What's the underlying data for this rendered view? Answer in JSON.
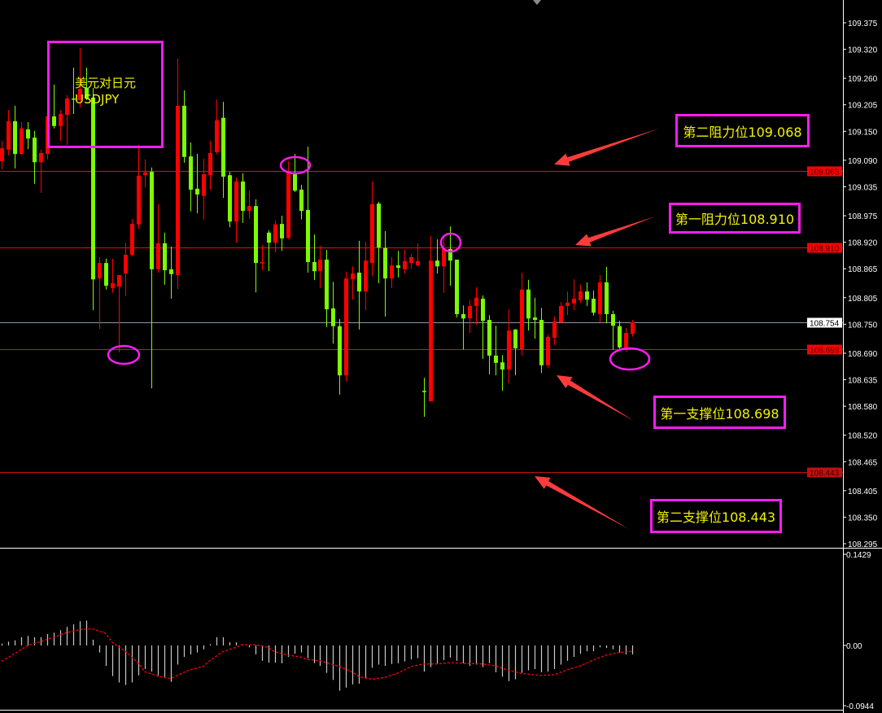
{
  "chart_data": [
    {
      "type": "candlestick",
      "symbol_cn": "美元对日元",
      "symbol": "USDJPY",
      "ylim": [
        108.295,
        109.375
      ],
      "y_ticks": [
        "109.375",
        "109.320",
        "109.260",
        "109.205",
        "109.150",
        "109.090",
        "109.035",
        "108.975",
        "108.920",
        "108.865",
        "108.805",
        "108.750",
        "108.690",
        "108.635",
        "108.580",
        "108.520",
        "108.465",
        "108.405",
        "108.350",
        "108.295"
      ],
      "current_price": {
        "label": "108.754",
        "value": 108.754,
        "color": "#8a98a8"
      },
      "bull_color": "#ff0000",
      "bear_color": "#7cfc00",
      "candles_ohlc": [
        [
          109.088,
          109.13,
          109.071,
          109.115
        ],
        [
          109.112,
          109.194,
          109.1,
          109.171
        ],
        [
          109.171,
          109.203,
          109.073,
          109.103
        ],
        [
          109.103,
          109.169,
          109.102,
          109.156
        ],
        [
          109.154,
          109.169,
          109.113,
          109.135
        ],
        [
          109.137,
          109.151,
          109.041,
          109.086
        ],
        [
          109.086,
          109.112,
          109.022,
          109.105
        ],
        [
          109.103,
          109.227,
          109.092,
          109.181
        ],
        [
          109.181,
          109.247,
          109.156,
          109.161
        ],
        [
          109.161,
          109.194,
          109.13,
          109.186
        ],
        [
          109.184,
          109.225,
          109.122,
          109.218
        ],
        [
          109.218,
          109.282,
          109.186,
          109.216
        ],
        [
          109.215,
          109.323,
          109.199,
          109.238
        ],
        [
          109.24,
          109.282,
          109.215,
          109.218
        ],
        [
          109.22,
          109.24,
          108.779,
          108.843
        ],
        [
          108.845,
          108.889,
          108.74,
          108.877
        ],
        [
          108.877,
          108.886,
          108.822,
          108.83
        ],
        [
          108.825,
          108.886,
          108.815,
          108.835
        ],
        [
          108.828,
          108.852,
          108.692,
          108.852
        ],
        [
          108.855,
          108.919,
          108.808,
          108.894
        ],
        [
          108.894,
          108.968,
          108.891,
          108.958
        ],
        [
          108.957,
          109.122,
          108.948,
          109.058
        ],
        [
          109.059,
          109.092,
          109.034,
          109.065
        ],
        [
          109.066,
          109.075,
          108.617,
          108.864
        ],
        [
          108.864,
          108.999,
          108.857,
          108.918
        ],
        [
          108.918,
          108.94,
          108.832,
          108.862
        ],
        [
          108.864,
          108.911,
          108.803,
          108.854
        ],
        [
          108.852,
          109.301,
          108.823,
          109.203
        ],
        [
          109.203,
          109.235,
          109.085,
          109.097
        ],
        [
          109.098,
          109.127,
          108.984,
          109.029
        ],
        [
          109.031,
          109.103,
          108.98,
          109.019
        ],
        [
          109.016,
          109.093,
          108.967,
          109.061
        ],
        [
          109.059,
          109.13,
          109.029,
          109.105
        ],
        [
          109.107,
          109.216,
          109.102,
          109.173
        ],
        [
          109.178,
          109.211,
          109.012,
          109.056
        ],
        [
          109.059,
          109.066,
          108.951,
          108.963
        ],
        [
          108.963,
          109.054,
          108.919,
          109.046
        ],
        [
          109.046,
          109.063,
          108.96,
          108.985
        ],
        [
          108.985,
          109.027,
          108.968,
          108.995
        ],
        [
          108.995,
          109.009,
          108.816,
          108.877
        ],
        [
          108.876,
          108.914,
          108.862,
          108.879
        ],
        [
          108.94,
          108.945,
          108.86,
          108.919
        ],
        [
          108.919,
          108.965,
          108.899,
          108.957
        ],
        [
          108.958,
          108.975,
          108.902,
          108.928
        ],
        [
          108.929,
          109.088,
          108.926,
          109.066
        ],
        [
          109.063,
          109.103,
          109.024,
          109.027
        ],
        [
          109.029,
          109.039,
          108.967,
          108.985
        ],
        [
          108.987,
          109.118,
          108.857,
          108.879
        ],
        [
          108.879,
          108.936,
          108.842,
          108.86
        ],
        [
          108.86,
          108.913,
          108.825,
          108.884
        ],
        [
          108.884,
          108.904,
          108.744,
          108.781
        ],
        [
          108.783,
          108.838,
          108.71,
          108.746
        ],
        [
          108.746,
          108.761,
          108.604,
          108.644
        ],
        [
          108.644,
          108.859,
          108.631,
          108.845
        ],
        [
          108.843,
          108.87,
          108.801,
          108.855
        ],
        [
          108.857,
          108.923,
          108.739,
          108.818
        ],
        [
          108.818,
          108.921,
          108.779,
          108.882
        ],
        [
          108.877,
          109.046,
          108.85,
          108.999
        ],
        [
          109.0,
          109.004,
          108.835,
          108.909
        ],
        [
          108.908,
          108.943,
          108.766,
          108.845
        ],
        [
          108.845,
          108.889,
          108.825,
          108.872
        ],
        [
          108.872,
          108.902,
          108.847,
          108.867
        ],
        [
          108.864,
          108.904,
          108.855,
          108.881
        ],
        [
          108.877,
          108.896,
          108.865,
          108.889
        ],
        [
          108.872,
          108.918,
          108.87,
          108.881
        ],
        [
          108.612,
          108.639,
          108.558,
          108.611
        ],
        [
          108.59,
          108.933,
          108.59,
          108.882
        ],
        [
          108.882,
          108.926,
          108.855,
          108.87
        ],
        [
          108.87,
          108.933,
          108.815,
          108.906
        ],
        [
          108.906,
          108.953,
          108.83,
          108.882
        ],
        [
          108.884,
          108.884,
          108.764,
          108.771
        ],
        [
          108.771,
          108.789,
          108.697,
          108.762
        ],
        [
          108.762,
          108.8,
          108.732,
          108.788
        ],
        [
          108.788,
          108.827,
          108.749,
          108.805
        ],
        [
          108.803,
          108.81,
          108.678,
          108.757
        ],
        [
          108.759,
          108.769,
          108.646,
          108.685
        ],
        [
          108.685,
          108.747,
          108.644,
          108.67
        ],
        [
          108.671,
          108.686,
          108.612,
          108.656
        ],
        [
          108.656,
          108.781,
          108.627,
          108.737
        ],
        [
          108.739,
          108.74,
          108.644,
          108.7
        ],
        [
          108.698,
          108.857,
          108.685,
          108.822
        ],
        [
          108.822,
          108.842,
          108.737,
          108.762
        ],
        [
          108.764,
          108.805,
          108.72,
          108.759
        ],
        [
          108.759,
          108.784,
          108.649,
          108.665
        ],
        [
          108.665,
          108.729,
          108.66,
          108.724
        ],
        [
          108.722,
          108.766,
          108.707,
          108.756
        ],
        [
          108.754,
          108.796,
          108.752,
          108.788
        ],
        [
          108.788,
          108.818,
          108.769,
          108.795
        ],
        [
          108.793,
          108.843,
          108.779,
          108.803
        ],
        [
          108.8,
          108.832,
          108.795,
          108.818
        ],
        [
          108.818,
          108.837,
          108.788,
          108.801
        ],
        [
          108.803,
          108.82,
          108.768,
          108.774
        ],
        [
          108.771,
          108.852,
          108.754,
          108.837
        ],
        [
          108.837,
          108.869,
          108.752,
          108.771
        ],
        [
          108.771,
          108.778,
          108.697,
          108.747
        ],
        [
          108.746,
          108.757,
          108.695,
          108.702
        ],
        [
          108.702,
          108.742,
          108.693,
          108.732
        ],
        [
          108.73,
          108.759,
          108.724,
          108.754
        ]
      ],
      "levels": [
        {
          "label": "第二阻力位109.068",
          "value": 109.068,
          "tag": "109.068",
          "color": "#ff0000"
        },
        {
          "label": "第一阻力位108.910",
          "value": 108.91,
          "tag": "108.910",
          "color": "#ff0000"
        },
        {
          "label": "第一支撑位108.698",
          "value": 108.698,
          "tag": "108.698",
          "color": "#ff0000"
        },
        {
          "label": "第二支撑位108.443",
          "value": 108.443,
          "tag": "108.443",
          "color": "#c01010"
        }
      ],
      "highlight_color": "#ff1cf0",
      "arrow_color": "#ff3b3b",
      "label_text_color": "#f2f200"
    },
    {
      "type": "macd",
      "ylim": [
        -0.0944,
        0.1429
      ],
      "y_ticks": [
        "0.1429",
        "0.00",
        "-0.0944"
      ],
      "histogram_color": "#c8c8c8",
      "signal_color": "#ff0000",
      "histogram": [
        0.001,
        0.006,
        0.008,
        0.013,
        0.015,
        0.013,
        0.013,
        0.018,
        0.02,
        0.024,
        0.029,
        0.033,
        0.038,
        0.039,
        0.009,
        -0.011,
        -0.032,
        -0.048,
        -0.058,
        -0.062,
        -0.058,
        -0.047,
        -0.037,
        -0.041,
        -0.047,
        -0.051,
        -0.057,
        -0.03,
        -0.018,
        -0.014,
        -0.011,
        -0.006,
        0.002,
        0.013,
        0.013,
        0.005,
        0.005,
        0.0,
        -0.003,
        -0.014,
        -0.024,
        -0.027,
        -0.027,
        -0.028,
        -0.018,
        -0.013,
        -0.011,
        -0.02,
        -0.028,
        -0.032,
        -0.043,
        -0.054,
        -0.071,
        -0.066,
        -0.061,
        -0.06,
        -0.052,
        -0.035,
        -0.03,
        -0.032,
        -0.029,
        -0.028,
        -0.025,
        -0.022,
        -0.02,
        -0.041,
        -0.034,
        -0.029,
        -0.023,
        -0.019,
        -0.024,
        -0.028,
        -0.032,
        -0.03,
        -0.034,
        -0.028,
        -0.042,
        -0.049,
        -0.056,
        -0.053,
        -0.043,
        -0.039,
        -0.037,
        -0.042,
        -0.041,
        -0.037,
        -0.03,
        -0.024,
        -0.018,
        -0.013,
        -0.009,
        -0.009,
        -0.003,
        -0.004,
        -0.006,
        -0.011,
        -0.014,
        -0.014
      ],
      "signal": [
        [
          0,
          -0.025
        ],
        [
          2,
          -0.013
        ],
        [
          4,
          0.0
        ],
        [
          6,
          0.006
        ],
        [
          8,
          0.013
        ],
        [
          10,
          0.02
        ],
        [
          12,
          0.025
        ],
        [
          14,
          0.026
        ],
        [
          16,
          0.019
        ],
        [
          17,
          0.005
        ],
        [
          19,
          -0.009
        ],
        [
          21,
          -0.027
        ],
        [
          22,
          -0.041
        ],
        [
          24,
          -0.048
        ],
        [
          26,
          -0.052
        ],
        [
          27,
          -0.047
        ],
        [
          29,
          -0.038
        ],
        [
          31,
          -0.033
        ],
        [
          32,
          -0.024
        ],
        [
          34,
          -0.01
        ],
        [
          36,
          -0.003
        ],
        [
          37,
          0.001
        ],
        [
          39,
          0.001
        ],
        [
          41,
          -0.003
        ],
        [
          42,
          -0.01
        ],
        [
          44,
          -0.015
        ],
        [
          46,
          -0.018
        ],
        [
          47,
          -0.022
        ],
        [
          49,
          -0.024
        ],
        [
          52,
          -0.033
        ],
        [
          54,
          -0.042
        ],
        [
          55,
          -0.049
        ],
        [
          57,
          -0.053
        ],
        [
          59,
          -0.05
        ],
        [
          61,
          -0.043
        ],
        [
          63,
          -0.033
        ],
        [
          65,
          -0.029
        ],
        [
          67,
          -0.029
        ],
        [
          69,
          -0.027
        ],
        [
          71,
          -0.028
        ],
        [
          74,
          -0.029
        ],
        [
          76,
          -0.032
        ],
        [
          78,
          -0.039
        ],
        [
          80,
          -0.044
        ],
        [
          82,
          -0.046
        ],
        [
          83,
          -0.047
        ],
        [
          85,
          -0.046
        ],
        [
          87,
          -0.038
        ],
        [
          89,
          -0.032
        ],
        [
          91,
          -0.023
        ],
        [
          93,
          -0.015
        ],
        [
          95,
          -0.011
        ],
        [
          97,
          -0.009
        ]
      ]
    }
  ]
}
